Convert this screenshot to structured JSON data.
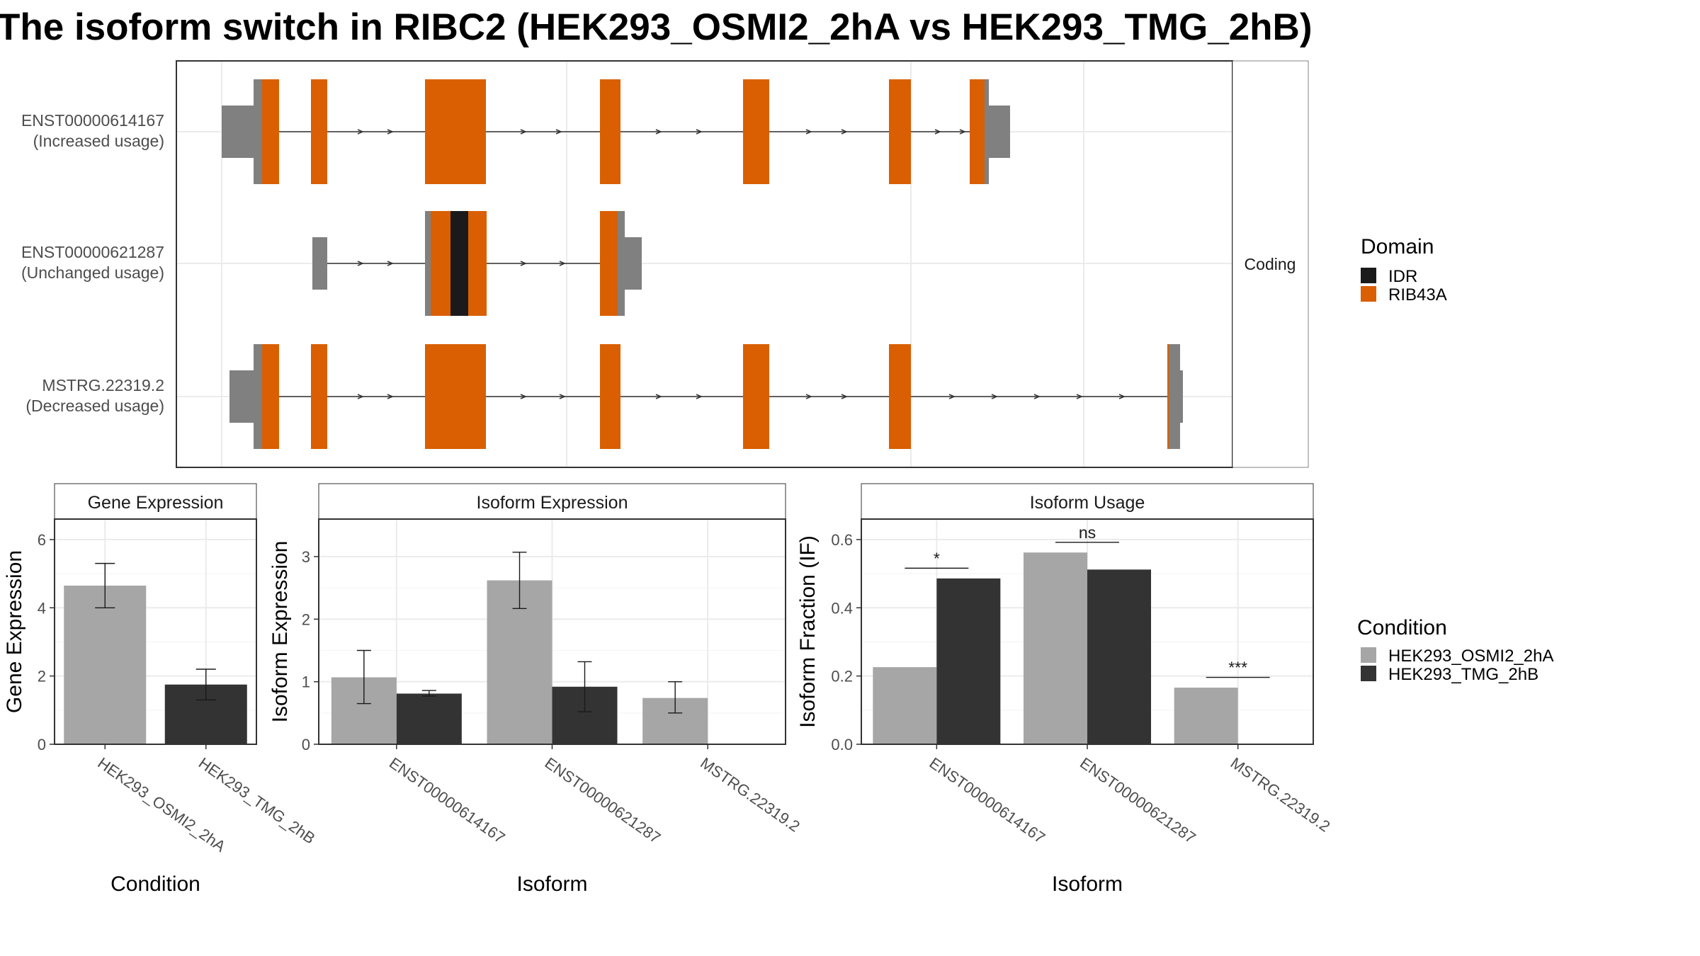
{
  "title": "The isoform switch in RIBC2 (HEK293_OSMI2_2hA vs HEK293_TMG_2hB)",
  "structure": {
    "facet_label": "Coding",
    "transcripts": [
      {
        "id": "ENST00000614167",
        "status": "(Increased usage)"
      },
      {
        "id": "ENST00000621287",
        "status": "(Unchanged usage)"
      },
      {
        "id": "MSTRG.22319.2",
        "status": "(Decreased usage)"
      }
    ],
    "domain_legend": {
      "title": "Domain",
      "items": [
        {
          "label": "IDR",
          "color": "#1a1a1a"
        },
        {
          "label": "RIB43A",
          "color": "#d95f02"
        }
      ]
    },
    "colors": {
      "utr": "#808080",
      "cds": "#d95f02",
      "idr": "#1a1a1a",
      "intron": "#333333"
    }
  },
  "condition_legend": {
    "title": "Condition",
    "items": [
      {
        "label": "HEK293_OSMI2_2hA",
        "color": "#a6a6a6"
      },
      {
        "label": "HEK293_TMG_2hB",
        "color": "#333333"
      }
    ]
  },
  "chart_data": [
    {
      "type": "bar",
      "title": "Gene Expression",
      "xlabel": "Condition",
      "ylabel": "Gene Expression",
      "categories": [
        "HEK293_OSMI2_2hA",
        "HEK293_TMG_2hB"
      ],
      "values": [
        4.65,
        1.75
      ],
      "error": [
        [
          4.0,
          5.3
        ],
        [
          1.3,
          2.2
        ]
      ],
      "colors": [
        "#a6a6a6",
        "#333333"
      ],
      "ylim": [
        0,
        6.6
      ],
      "yticks": [
        0,
        2,
        4,
        6
      ]
    },
    {
      "type": "bar",
      "title": "Isoform Expression",
      "xlabel": "Isoform",
      "ylabel": "Isoform Expression",
      "categories": [
        "ENST00000614167",
        "ENST00000621287",
        "MSTRG.22319.2"
      ],
      "series": [
        {
          "name": "HEK293_OSMI2_2hA",
          "color": "#a6a6a6",
          "values": [
            1.07,
            2.62,
            0.74
          ],
          "error": [
            [
              0.65,
              1.5
            ],
            [
              2.17,
              3.07
            ],
            [
              0.5,
              1.0
            ]
          ]
        },
        {
          "name": "HEK293_TMG_2hB",
          "color": "#333333",
          "values": [
            0.81,
            0.92,
            0.0
          ],
          "error": [
            [
              0.77,
              0.86
            ],
            [
              0.52,
              1.32
            ],
            [
              0.0,
              0.0
            ]
          ]
        }
      ],
      "ylim": [
        0,
        3.6
      ],
      "yticks": [
        0,
        1,
        2,
        3
      ]
    },
    {
      "type": "bar",
      "title": "Isoform Usage",
      "xlabel": "Isoform",
      "ylabel": "Isoform Fraction (IF)",
      "categories": [
        "ENST00000614167",
        "ENST00000621287",
        "MSTRG.22319.2"
      ],
      "series": [
        {
          "name": "HEK293_OSMI2_2hA",
          "color": "#a6a6a6",
          "values": [
            0.226,
            0.562,
            0.166
          ]
        },
        {
          "name": "HEK293_TMG_2hB",
          "color": "#333333",
          "values": [
            0.486,
            0.512,
            0.0
          ]
        }
      ],
      "significance": [
        "*",
        "ns",
        "***"
      ],
      "ylim": [
        0,
        0.66
      ],
      "yticks": [
        "0.0",
        "0.2",
        "0.4",
        "0.6"
      ]
    }
  ]
}
